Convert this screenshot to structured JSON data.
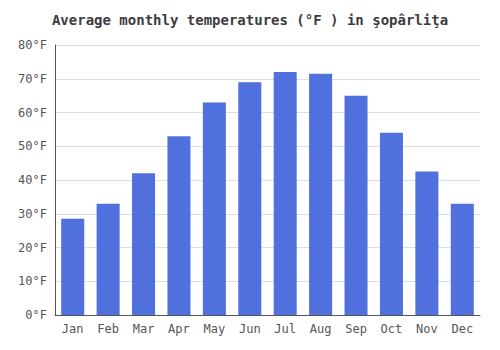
{
  "chart_data": {
    "type": "bar",
    "title": "Average monthly temperatures (°F ) in şopârliţa",
    "categories": [
      "Jan",
      "Feb",
      "Mar",
      "Apr",
      "May",
      "Jun",
      "Jul",
      "Aug",
      "Sep",
      "Oct",
      "Nov",
      "Dec"
    ],
    "values": [
      28.5,
      33,
      42,
      53,
      63,
      69,
      72,
      71.5,
      65,
      54,
      42.5,
      33
    ],
    "ylim": [
      0,
      80
    ],
    "yticks": [
      {
        "value": 0,
        "label": "0°F"
      },
      {
        "value": 10,
        "label": "10°F"
      },
      {
        "value": 20,
        "label": "20°F"
      },
      {
        "value": 30,
        "label": "30°F"
      },
      {
        "value": 40,
        "label": "40°F"
      },
      {
        "value": 50,
        "label": "50°F"
      },
      {
        "value": 60,
        "label": "60°F"
      },
      {
        "value": 70,
        "label": "70°F"
      },
      {
        "value": 80,
        "label": "80°F"
      }
    ],
    "grid": true
  }
}
